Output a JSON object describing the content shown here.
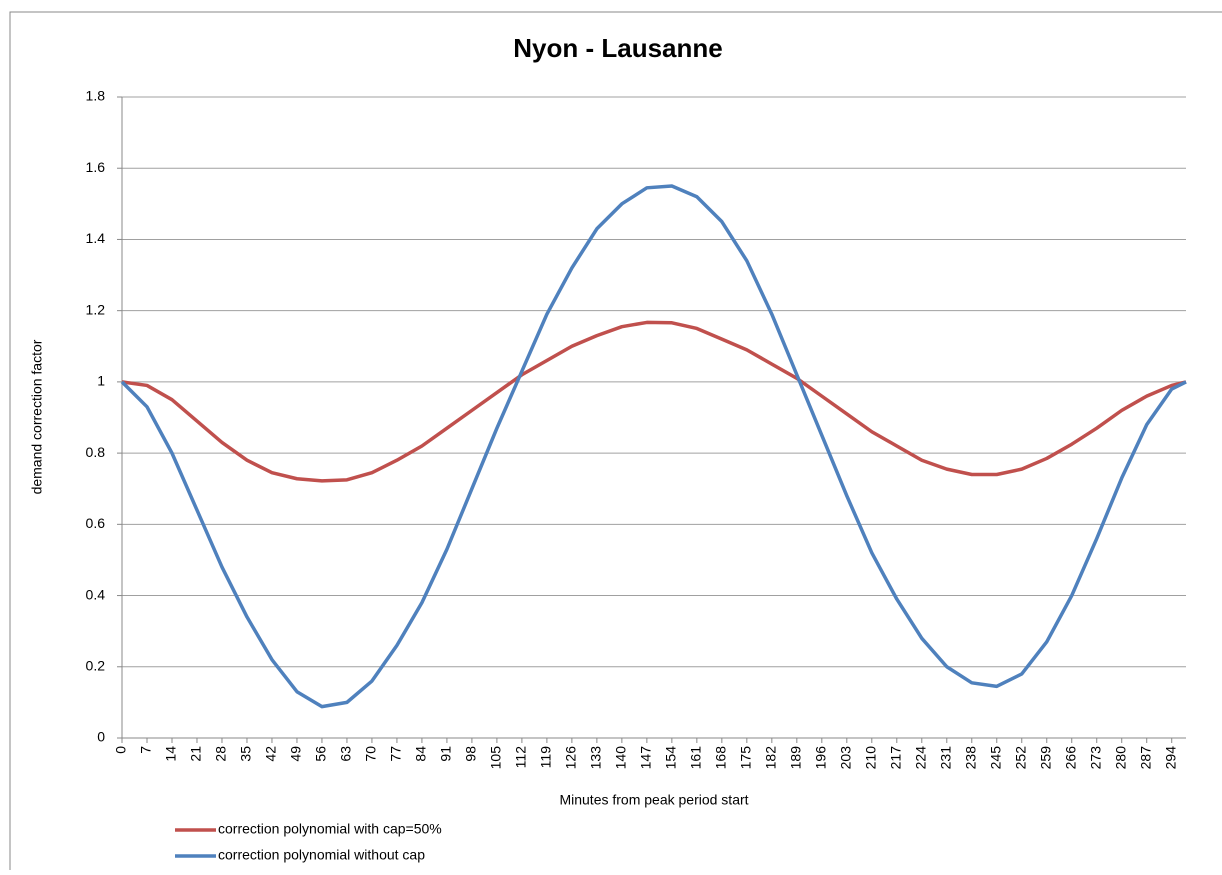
{
  "chart_data": {
    "type": "line",
    "title": "Nyon - Lausanne",
    "x_label": "Minutes from peak period start",
    "y_label": "demand correction factor",
    "x": [
      0,
      7,
      14,
      21,
      28,
      35,
      42,
      49,
      56,
      63,
      70,
      77,
      84,
      91,
      98,
      105,
      112,
      119,
      126,
      133,
      140,
      147,
      154,
      161,
      168,
      175,
      182,
      189,
      196,
      203,
      210,
      217,
      224,
      231,
      238,
      245,
      252,
      259,
      266,
      273,
      280,
      287,
      294,
      298
    ],
    "series": [
      {
        "name": "correction polynomial with cap=50%",
        "color": "#c0504d",
        "values": [
          1.0,
          0.99,
          0.95,
          0.89,
          0.83,
          0.78,
          0.745,
          0.728,
          0.722,
          0.725,
          0.745,
          0.78,
          0.82,
          0.87,
          0.92,
          0.97,
          1.02,
          1.06,
          1.1,
          1.13,
          1.155,
          1.167,
          1.166,
          1.15,
          1.12,
          1.09,
          1.05,
          1.01,
          0.96,
          0.91,
          0.86,
          0.82,
          0.78,
          0.755,
          0.74,
          0.74,
          0.755,
          0.785,
          0.825,
          0.87,
          0.92,
          0.96,
          0.99,
          1.0
        ]
      },
      {
        "name": "correction polynomial without cap",
        "color": "#4f81bd",
        "values": [
          1.0,
          0.93,
          0.8,
          0.64,
          0.48,
          0.34,
          0.22,
          0.13,
          0.088,
          0.1,
          0.16,
          0.26,
          0.38,
          0.53,
          0.7,
          0.87,
          1.03,
          1.19,
          1.32,
          1.43,
          1.5,
          1.545,
          1.55,
          1.52,
          1.45,
          1.34,
          1.19,
          1.02,
          0.85,
          0.68,
          0.52,
          0.39,
          0.28,
          0.2,
          0.155,
          0.145,
          0.18,
          0.27,
          0.4,
          0.56,
          0.73,
          0.88,
          0.98,
          1.0
        ]
      }
    ],
    "xlim": [
      0,
      298
    ],
    "xticks": [
      0,
      7,
      14,
      21,
      28,
      35,
      42,
      49,
      56,
      63,
      70,
      77,
      84,
      91,
      98,
      105,
      112,
      119,
      126,
      133,
      140,
      147,
      154,
      161,
      168,
      175,
      182,
      189,
      196,
      203,
      210,
      217,
      224,
      231,
      238,
      245,
      252,
      259,
      266,
      273,
      280,
      287,
      294
    ],
    "ylim": [
      0,
      1.8
    ],
    "yticks": [
      0,
      0.2,
      0.4,
      0.6,
      0.8,
      1,
      1.2,
      1.4,
      1.6,
      1.8
    ],
    "grid": true,
    "legend": "bottom-left"
  }
}
